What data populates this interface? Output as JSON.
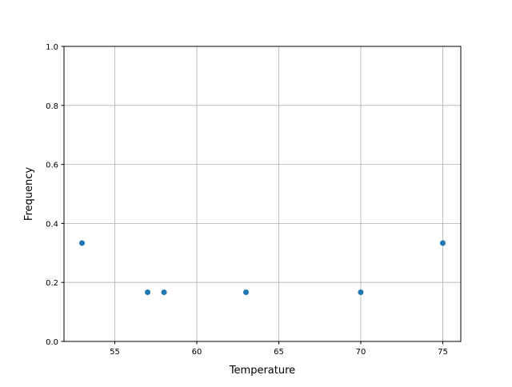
{
  "chart_data": {
    "type": "scatter",
    "title": "",
    "xlabel": "Temperature",
    "ylabel": "Frequency",
    "xlim": [
      51.9,
      76.1
    ],
    "ylim": [
      0,
      1.0
    ],
    "xticks": [
      55,
      60,
      65,
      70,
      75
    ],
    "xtick_labels": [
      "55",
      "60",
      "65",
      "70",
      "75"
    ],
    "yticks": [
      0,
      0.2,
      0.4,
      0.6,
      0.8,
      1.0
    ],
    "ytick_labels": [
      "0.0",
      "0.2",
      "0.4",
      "0.6",
      "0.8",
      "1.0"
    ],
    "grid": true,
    "color": "#1f77b4",
    "x": [
      53,
      57,
      58,
      63,
      70,
      75
    ],
    "y": [
      0.3333,
      0.1667,
      0.1667,
      0.1667,
      0.1667,
      0.3333
    ]
  }
}
